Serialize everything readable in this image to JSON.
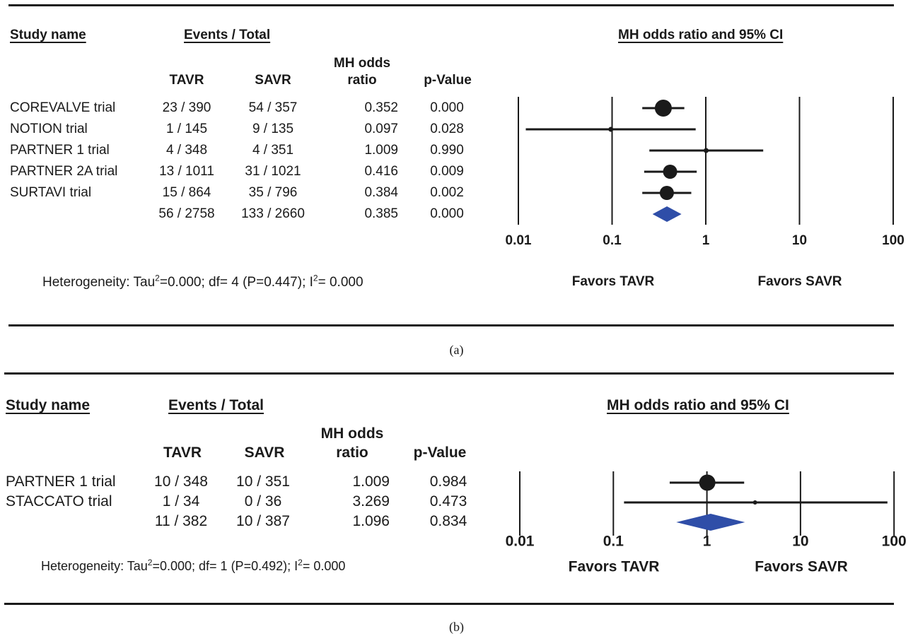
{
  "chart_data": [
    {
      "type": "forest",
      "panel_label": "(a)",
      "headers": {
        "study": "Study name",
        "events": "Events / Total",
        "col_tavr": "TAVR",
        "col_savr": "SAVR",
        "col_or_line1": "MH odds",
        "col_or_line2": "ratio",
        "col_p": "p-Value",
        "plot_title": "MH odds ratio and 95% CI"
      },
      "studies": [
        {
          "name": "COREVALVE trial",
          "tavr": "23 / 390",
          "savr": "54 / 357",
          "or": "0.352",
          "p": "0.000",
          "or_value": 0.352,
          "ci": [
            0.21,
            0.59
          ],
          "weight": "large"
        },
        {
          "name": "NOTION trial",
          "tavr": "1 / 145",
          "savr": "9 / 135",
          "or": "0.097",
          "p": "0.028",
          "or_value": 0.097,
          "ci": [
            0.012,
            0.78
          ],
          "weight": "small"
        },
        {
          "name": "PARTNER 1 trial",
          "tavr": "4 / 348",
          "savr": "4 / 351",
          "or": "1.009",
          "p": "0.990",
          "or_value": 1.009,
          "ci": [
            0.25,
            4.1
          ],
          "weight": "small"
        },
        {
          "name": "PARTNER 2A trial",
          "tavr": "13 / 1011",
          "savr": "31 / 1021",
          "or": "0.416",
          "p": "0.009",
          "or_value": 0.416,
          "ci": [
            0.22,
            0.8
          ],
          "weight": "medium"
        },
        {
          "name": "SURTAVI trial",
          "tavr": "15 / 864",
          "savr": "35 / 796",
          "or": "0.384",
          "p": "0.002",
          "or_value": 0.384,
          "ci": [
            0.21,
            0.7
          ],
          "weight": "medium"
        }
      ],
      "pooled": {
        "tavr": "56 / 2758",
        "savr": "133 / 2660",
        "or": "0.385",
        "p": "0.000",
        "or_value": 0.385,
        "ci": [
          0.27,
          0.55
        ]
      },
      "axis_ticks": [
        "0.01",
        "0.1",
        "1",
        "10",
        "100"
      ],
      "axis_tick_values": [
        0.01,
        0.1,
        1,
        10,
        100
      ],
      "scale": "log",
      "favors_left": "Favors TAVR",
      "favors_right": "Favors SAVR",
      "heterogeneity": {
        "prefix": "Heterogeneity: Tau",
        "sup1": "2",
        "mid": "=0.000; df= 4 (P=0.447); I",
        "sup2": "2",
        "suffix": "= 0.000"
      },
      "colors": {
        "marker": "#1a1a1a",
        "diamond": "#2f4ea8"
      }
    },
    {
      "type": "forest",
      "panel_label": "(b)",
      "headers": {
        "study": "Study name",
        "events": "Events / Total",
        "col_tavr": "TAVR",
        "col_savr": "SAVR",
        "col_or_line1": "MH odds",
        "col_or_line2": "ratio",
        "col_p": "p-Value",
        "plot_title": "MH odds ratio and 95% CI"
      },
      "studies": [
        {
          "name": "PARTNER 1 trial",
          "tavr": "10 / 348",
          "savr": "10 / 351",
          "or": "1.009",
          "p": "0.984",
          "or_value": 1.009,
          "ci": [
            0.4,
            2.5
          ],
          "weight": "large"
        },
        {
          "name": "STACCATO trial",
          "tavr": "1 / 34",
          "savr": "0 / 36",
          "or": "3.269",
          "p": "0.473",
          "or_value": 3.269,
          "ci": [
            0.13,
            85
          ],
          "weight": "small"
        }
      ],
      "pooled": {
        "tavr": "11 / 382",
        "savr": "10 / 387",
        "or": "1.096",
        "p": "0.834",
        "or_value": 1.096,
        "ci": [
          0.47,
          2.55
        ]
      },
      "axis_ticks": [
        "0.01",
        "0.1",
        "1",
        "10",
        "100"
      ],
      "axis_tick_values": [
        0.01,
        0.1,
        1,
        10,
        100
      ],
      "scale": "log",
      "favors_left": "Favors TAVR",
      "favors_right": "Favors SAVR",
      "heterogeneity": {
        "prefix": "Heterogeneity: Tau",
        "sup1": "2",
        "mid": "=0.000; df= 1 (P=0.492); I",
        "sup2": "2",
        "suffix": "= 0.000"
      },
      "colors": {
        "marker": "#1a1a1a",
        "diamond": "#2f4ea8"
      }
    }
  ]
}
